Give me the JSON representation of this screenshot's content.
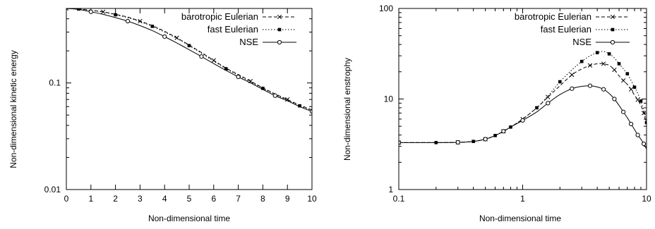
{
  "chart_data": [
    {
      "type": "line",
      "xlabel": "Non-dimensional time",
      "ylabel": "Non-dimensional kinetic energy",
      "x_scale": "linear",
      "y_scale": "log",
      "xlim": [
        0,
        10
      ],
      "ylim": [
        0.01,
        0.5
      ],
      "x_ticks": [
        "0",
        "1",
        "2",
        "3",
        "4",
        "5",
        "6",
        "7",
        "8",
        "9",
        "10"
      ],
      "y_ticks": [
        "0.01",
        "0.1"
      ],
      "grid": false,
      "legend_position": "top-right",
      "series": [
        {
          "name": "barotropic Eulerian",
          "marker": "x",
          "dash": "dashed",
          "x": [
            0,
            0.5,
            1,
            1.5,
            2,
            2.5,
            3,
            3.5,
            4,
            4.5,
            5,
            5.5,
            6,
            6.5,
            7,
            7.5,
            8,
            8.5,
            9,
            9.5,
            10
          ],
          "y": [
            0.5,
            0.495,
            0.48,
            0.465,
            0.44,
            0.415,
            0.38,
            0.345,
            0.305,
            0.265,
            0.227,
            0.193,
            0.163,
            0.138,
            0.12,
            0.104,
            0.09,
            0.079,
            0.07,
            0.062,
            0.056
          ]
        },
        {
          "name": "fast Eulerian",
          "marker": "square",
          "dash": "dotted",
          "x": [
            0,
            0.5,
            1,
            1.5,
            2,
            2.5,
            3,
            3.5,
            4,
            4.5,
            5,
            5.5,
            6,
            6.5,
            7,
            7.5,
            8,
            8.5,
            9,
            9.5,
            10
          ],
          "y": [
            0.5,
            0.494,
            0.478,
            0.462,
            0.436,
            0.41,
            0.375,
            0.34,
            0.3,
            0.262,
            0.224,
            0.19,
            0.16,
            0.136,
            0.118,
            0.102,
            0.089,
            0.078,
            0.069,
            0.061,
            0.055
          ]
        },
        {
          "name": "NSE",
          "marker": "circle",
          "dash": "solid",
          "x": [
            0,
            0.5,
            1,
            1.5,
            2,
            2.5,
            3,
            3.5,
            4,
            4.5,
            5,
            5.5,
            6,
            6.5,
            7,
            7.5,
            8,
            8.5,
            9,
            9.5,
            10
          ],
          "y": [
            0.5,
            0.49,
            0.465,
            0.44,
            0.41,
            0.38,
            0.345,
            0.31,
            0.272,
            0.237,
            0.205,
            0.177,
            0.152,
            0.131,
            0.114,
            0.1,
            0.087,
            0.076,
            0.068,
            0.06,
            0.054
          ]
        }
      ]
    },
    {
      "type": "line",
      "xlabel": "Non-dimensional time",
      "ylabel": "Non-dimensional enstrophy",
      "x_scale": "log",
      "y_scale": "log",
      "xlim": [
        0.1,
        10
      ],
      "ylim": [
        1,
        100
      ],
      "x_ticks": [
        "0.1",
        "1",
        "10"
      ],
      "y_ticks": [
        "1",
        "10",
        "100"
      ],
      "grid": false,
      "legend_position": "top-right",
      "series": [
        {
          "name": "barotropic Eulerian",
          "marker": "x",
          "dash": "dashed",
          "x": [
            0.1,
            0.2,
            0.3,
            0.4,
            0.5,
            0.6,
            0.7,
            0.8,
            1.0,
            1.3,
            1.6,
            2.0,
            2.5,
            3.0,
            3.5,
            4.0,
            4.5,
            5.0,
            5.5,
            6.0,
            6.5,
            7.0,
            7.5,
            8.0,
            8.5,
            9.0,
            9.5,
            10
          ],
          "y": [
            3.3,
            3.3,
            3.32,
            3.4,
            3.6,
            3.95,
            4.4,
            4.9,
            6.0,
            8.0,
            10.5,
            14.0,
            18.5,
            21.5,
            23.5,
            24.5,
            24.5,
            23.5,
            21.0,
            18.0,
            16.0,
            14.5,
            12.8,
            11.0,
            9.8,
            8.5,
            7.0,
            5.2
          ]
        },
        {
          "name": "fast Eulerian",
          "marker": "square",
          "dash": "dotted",
          "x": [
            0.1,
            0.2,
            0.3,
            0.4,
            0.5,
            0.6,
            0.7,
            0.8,
            1.0,
            1.3,
            1.6,
            2.0,
            2.5,
            3.0,
            3.5,
            4.0,
            4.5,
            5.0,
            5.5,
            6.0,
            6.5,
            7.0,
            7.5,
            8.0,
            8.5,
            9.0,
            9.5,
            10
          ],
          "y": [
            3.3,
            3.3,
            3.32,
            3.4,
            3.6,
            3.95,
            4.4,
            4.9,
            6.0,
            8.0,
            10.8,
            15.5,
            21.0,
            26.0,
            30.0,
            32.5,
            33.5,
            31.5,
            28.5,
            24.5,
            21.5,
            19.0,
            16.0,
            13.5,
            11.5,
            9.5,
            7.5,
            5.5
          ]
        },
        {
          "name": "NSE",
          "marker": "circle",
          "dash": "solid",
          "x": [
            0.1,
            0.2,
            0.3,
            0.4,
            0.5,
            0.6,
            0.7,
            0.8,
            1.0,
            1.3,
            1.6,
            2.0,
            2.5,
            3.0,
            3.5,
            4.0,
            4.5,
            5.0,
            5.5,
            6.0,
            6.5,
            7.0,
            7.5,
            8.0,
            8.5,
            9.0,
            9.5,
            10
          ],
          "y": [
            3.3,
            3.3,
            3.32,
            3.4,
            3.6,
            3.95,
            4.4,
            4.9,
            5.8,
            7.2,
            9.0,
            11.2,
            13.0,
            13.8,
            14.0,
            13.6,
            12.8,
            11.5,
            10.0,
            8.5,
            7.2,
            6.2,
            5.3,
            4.6,
            4.0,
            3.6,
            3.2,
            2.8
          ]
        }
      ]
    }
  ]
}
